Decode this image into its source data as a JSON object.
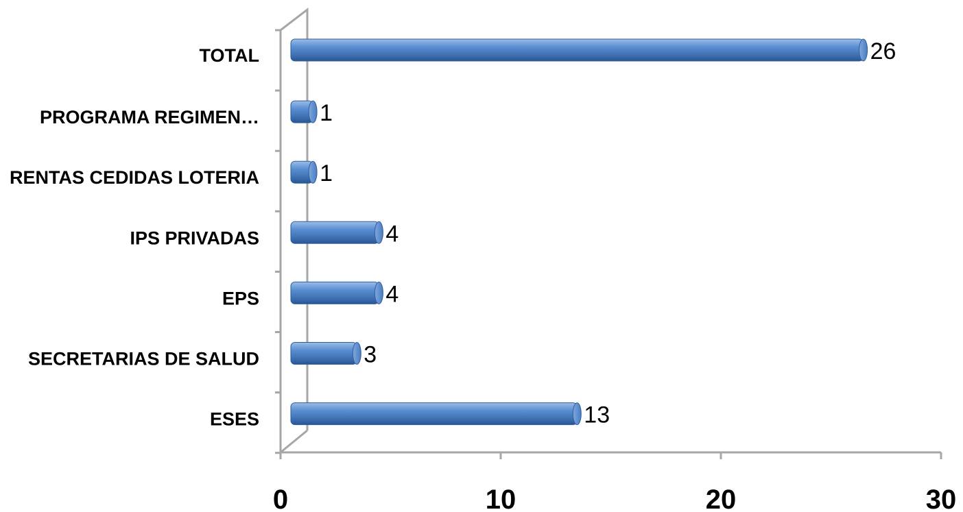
{
  "chart_data": {
    "type": "bar",
    "orientation": "horizontal",
    "style": "3d-cylinder",
    "title": "",
    "xlabel": "",
    "ylabel": "",
    "categories": [
      "TOTAL",
      "PROGRAMA REGIMEN…",
      "RENTAS CEDIDAS LOTERIA",
      "IPS PRIVADAS",
      "EPS",
      "SECRETARIAS DE SALUD",
      "ESES"
    ],
    "values": [
      26,
      1,
      1,
      4,
      4,
      3,
      13
    ],
    "xlim": [
      0,
      30
    ],
    "xticks": [
      "0",
      "10",
      "20",
      "30"
    ],
    "grid": false,
    "legend": "none",
    "bar_color": "#4f81bd"
  }
}
